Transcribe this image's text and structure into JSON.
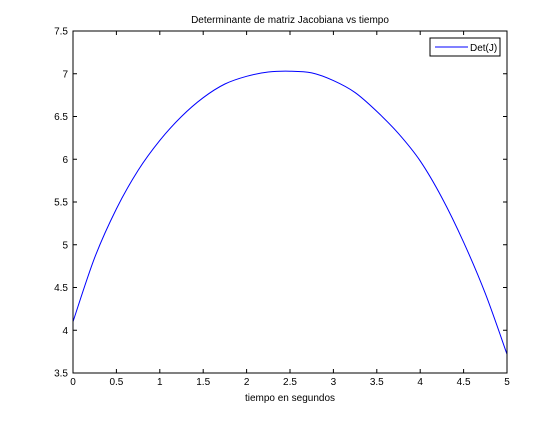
{
  "chart_data": {
    "type": "line",
    "title": "Determinante de matriz Jacobiana vs tiempo",
    "xlabel": "tiempo en segundos",
    "ylabel": "",
    "xlim": [
      0,
      5
    ],
    "ylim": [
      3.5,
      7.5
    ],
    "grid": false,
    "legend_position": "top-right",
    "xticks": [
      0,
      0.5,
      1,
      1.5,
      2,
      2.5,
      3,
      3.5,
      4,
      4.5,
      5
    ],
    "xtick_labels": [
      "0",
      "0.5",
      "1",
      "1.5",
      "2",
      "2.5",
      "3",
      "3.5",
      "4",
      "4.5",
      "5"
    ],
    "yticks": [
      3.5,
      4,
      4.5,
      5,
      5.5,
      6,
      6.5,
      7,
      7.5
    ],
    "ytick_labels": [
      "3.5",
      "4",
      "4.5",
      "5",
      "5.5",
      "6",
      "6.5",
      "7",
      "7.5"
    ],
    "series": [
      {
        "name": "Det(J)",
        "color": "#0000ff",
        "x": [
          0,
          0.25,
          0.5,
          0.75,
          1,
          1.25,
          1.5,
          1.75,
          2,
          2.25,
          2.5,
          2.75,
          3,
          3.25,
          3.5,
          3.75,
          4,
          4.25,
          4.5,
          4.75,
          5
        ],
        "y": [
          4.1,
          4.85,
          5.42,
          5.87,
          6.22,
          6.5,
          6.72,
          6.88,
          6.97,
          7.02,
          7.03,
          7.01,
          6.92,
          6.78,
          6.56,
          6.3,
          5.98,
          5.55,
          5.03,
          4.43,
          3.72
        ]
      }
    ]
  }
}
